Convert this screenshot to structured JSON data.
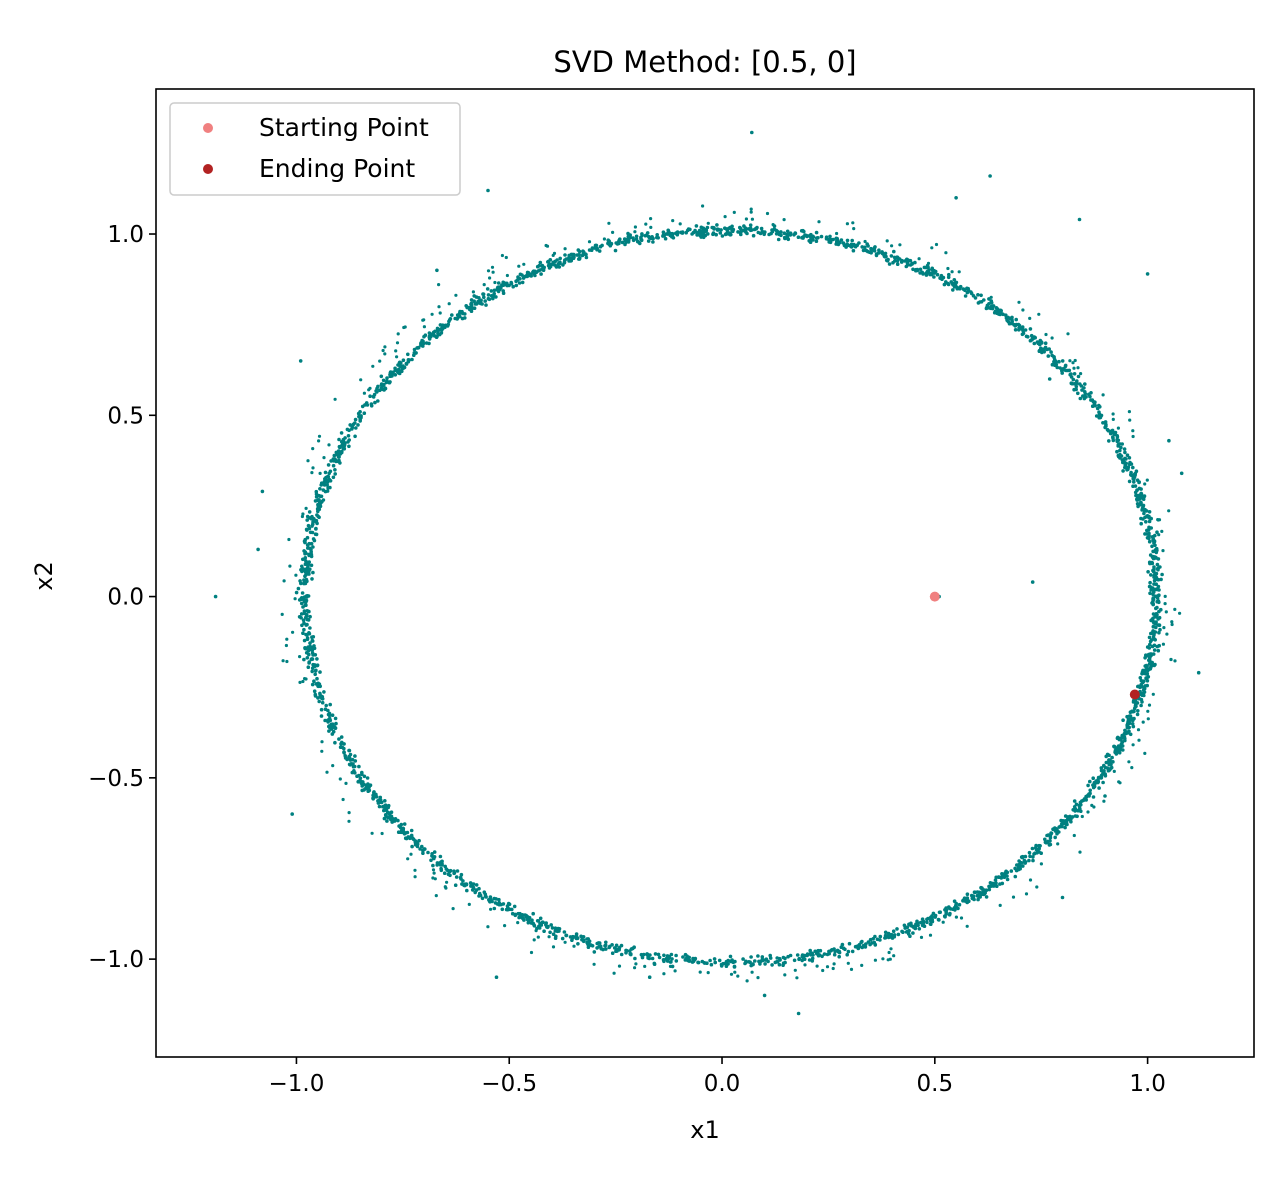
{
  "chart_data": {
    "type": "scatter",
    "title": "SVD Method: [0.5, 0]",
    "xlabel": "x1",
    "ylabel": "x2",
    "xlim": [
      -1.33,
      1.25
    ],
    "ylim": [
      -1.27,
      1.4
    ],
    "xticks": [
      -1.0,
      -0.5,
      0.0,
      0.5,
      1.0
    ],
    "xtick_labels": [
      "−1.0",
      "−0.5",
      "0.0",
      "0.5",
      "1.0"
    ],
    "yticks": [
      -1.0,
      -0.5,
      0.0,
      0.5,
      1.0
    ],
    "ytick_labels": [
      "−1.0",
      "−0.5",
      "0.0",
      "0.5",
      "1.0"
    ],
    "grid": false,
    "legend_position": "top-left",
    "series": [
      {
        "kind": "trajectory",
        "color": "#008080",
        "shape": "ellipse",
        "center": [
          0.02,
          0.0
        ],
        "radius_x": 1.0,
        "radius_y": 1.01,
        "outliers": [
          [
            -1.19,
            0.0
          ],
          [
            0.07,
            1.28
          ],
          [
            -0.55,
            1.12
          ],
          [
            0.63,
            1.16
          ],
          [
            0.84,
            1.04
          ],
          [
            1.0,
            0.89
          ],
          [
            -0.99,
            0.65
          ],
          [
            -1.08,
            0.29
          ],
          [
            -1.09,
            0.13
          ],
          [
            0.73,
            0.04
          ],
          [
            0.51,
            0.0
          ],
          [
            1.12,
            -0.21
          ],
          [
            1.08,
            0.34
          ],
          [
            1.05,
            0.43
          ],
          [
            -1.01,
            -0.6
          ],
          [
            0.8,
            -0.83
          ],
          [
            0.18,
            -1.15
          ],
          [
            0.1,
            -1.1
          ],
          [
            -0.53,
            -1.05
          ],
          [
            -0.17,
            -1.05
          ],
          [
            -0.3,
            -0.98
          ],
          [
            -0.67,
            0.9
          ],
          [
            0.55,
            1.1
          ],
          [
            0.9,
            -0.55
          ],
          [
            0.77,
            0.6
          ]
        ]
      },
      {
        "name": "Starting Point",
        "color": "#f08080",
        "points": [
          [
            0.5,
            0.0
          ]
        ]
      },
      {
        "name": "Ending Point",
        "color": "#b22222",
        "points": [
          [
            0.97,
            -0.27
          ]
        ]
      }
    ]
  }
}
